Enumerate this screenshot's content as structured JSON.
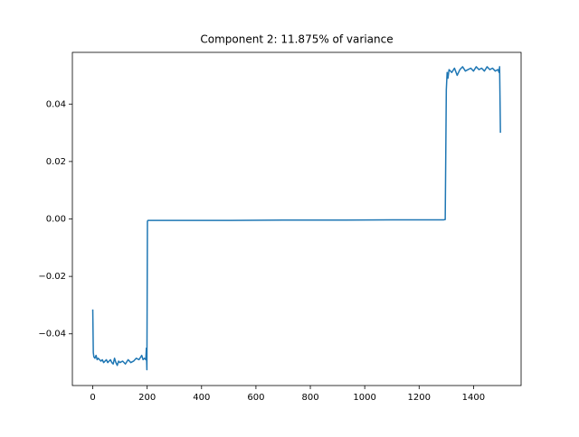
{
  "chart_data": {
    "type": "line",
    "title": "Component 2: 11.875% of variance",
    "x": [
      0,
      2,
      4,
      8,
      12,
      16,
      20,
      25,
      30,
      35,
      40,
      45,
      50,
      55,
      60,
      65,
      70,
      75,
      80,
      85,
      90,
      95,
      100,
      110,
      120,
      130,
      140,
      150,
      160,
      170,
      180,
      185,
      190,
      195,
      197,
      199,
      201,
      203,
      300,
      500,
      700,
      900,
      1100,
      1290,
      1296,
      1300,
      1303,
      1306,
      1310,
      1320,
      1330,
      1340,
      1350,
      1360,
      1370,
      1380,
      1390,
      1400,
      1410,
      1420,
      1430,
      1440,
      1450,
      1460,
      1470,
      1480,
      1490,
      1494,
      1496,
      1499
    ],
    "series": [
      {
        "color": "#1f77b4",
        "values": [
          -0.0315,
          -0.0465,
          -0.048,
          -0.0485,
          -0.0475,
          -0.049,
          -0.0485,
          -0.049,
          -0.0495,
          -0.049,
          -0.05,
          -0.0495,
          -0.049,
          -0.05,
          -0.0495,
          -0.049,
          -0.05,
          -0.0505,
          -0.0485,
          -0.05,
          -0.051,
          -0.0495,
          -0.05,
          -0.0495,
          -0.0505,
          -0.049,
          -0.05,
          -0.0495,
          -0.0485,
          -0.049,
          -0.0475,
          -0.049,
          -0.0485,
          -0.049,
          -0.045,
          -0.0525,
          -0.0008,
          -0.0005,
          -0.0005,
          -0.0005,
          -0.0004,
          -0.0004,
          -0.0003,
          -0.0003,
          -0.0002,
          0.045,
          0.051,
          0.049,
          0.052,
          0.051,
          0.0525,
          0.05,
          0.052,
          0.053,
          0.0515,
          0.052,
          0.0525,
          0.0515,
          0.053,
          0.052,
          0.0525,
          0.0515,
          0.053,
          0.052,
          0.0525,
          0.0515,
          0.052,
          0.051,
          0.053,
          0.03
        ]
      }
    ],
    "xlim": [
      -75,
      1575
    ],
    "xticks": [
      0,
      200,
      400,
      600,
      800,
      1000,
      1200,
      1400
    ],
    "ylim": [
      -0.058,
      0.058
    ],
    "yticks": [
      {
        "value": -0.04,
        "label": "−0.04"
      },
      {
        "value": -0.02,
        "label": "−0.02"
      },
      {
        "value": 0,
        "label": "0.00"
      },
      0.02,
      0.04
    ]
  }
}
